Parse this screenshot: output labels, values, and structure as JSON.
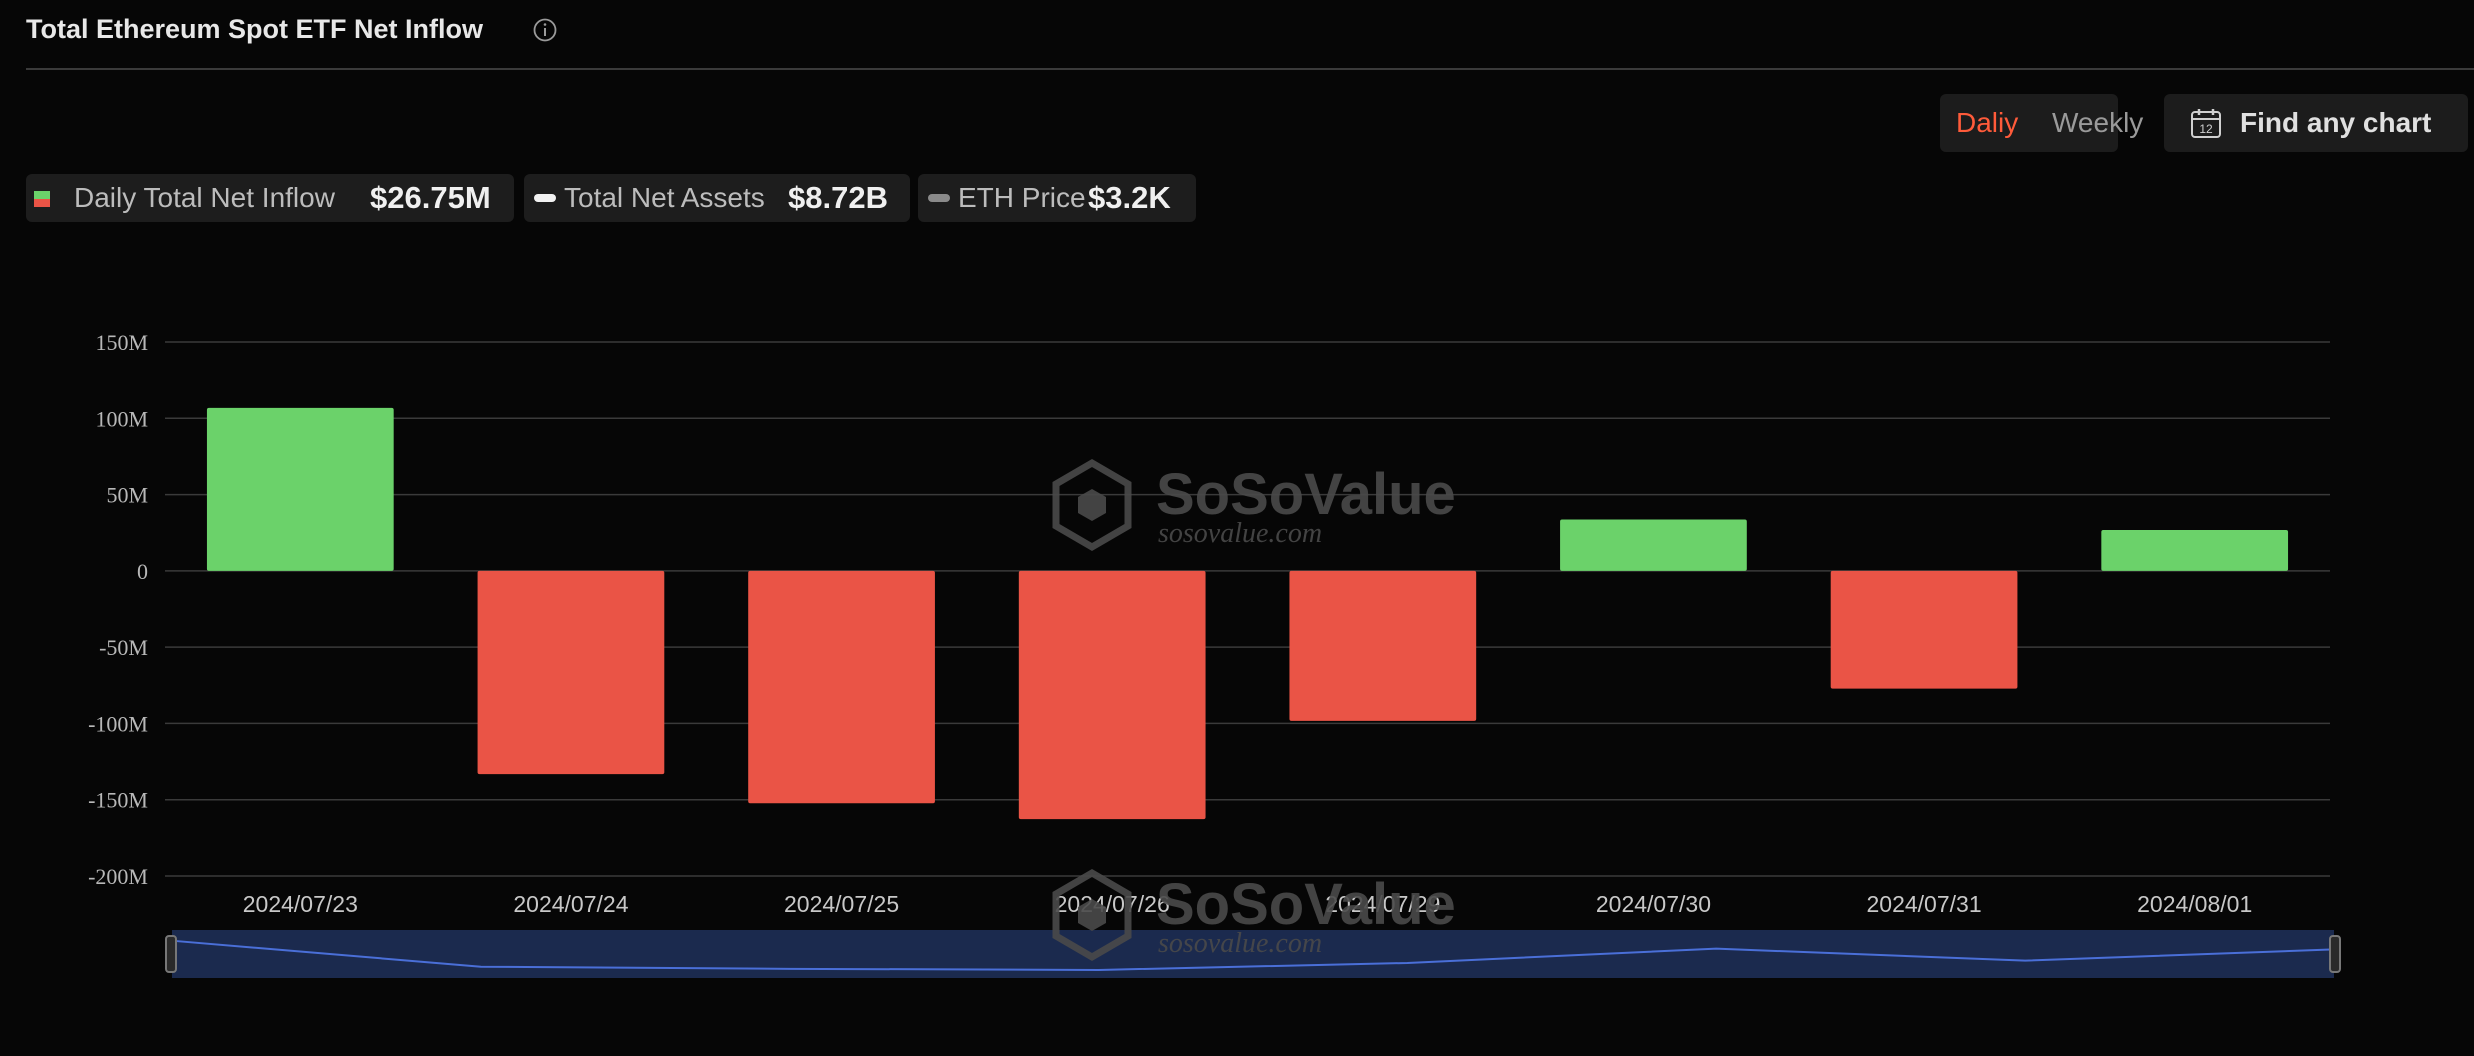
{
  "header": {
    "title": "Total Ethereum Spot ETF Net Inflow",
    "info_icon": "info-circle-icon"
  },
  "controls": {
    "daily_label": "Daliy",
    "weekly_label": "Weekly",
    "find_chart_label": "Find any chart",
    "calendar_icon": "calendar-icon",
    "calendar_day": "12"
  },
  "legend": {
    "inflow": {
      "name": "Daily Total Net Inflow",
      "value": "$26.75M"
    },
    "assets": {
      "name": "Total Net Assets",
      "value": "$8.72B"
    },
    "price": {
      "name": "ETH Price",
      "value": "$3.2K"
    }
  },
  "watermark": {
    "brand": "SoSoValue",
    "url": "sosovalue.com"
  },
  "colors": {
    "positive": "#6bd26a",
    "negative": "#ea5446",
    "accent": "#ff5b3a",
    "navigator_fill": "#1b2a4e",
    "navigator_line": "#4a6fd8"
  },
  "chart_data": {
    "type": "bar",
    "categories": [
      "2024/07/23",
      "2024/07/24",
      "2024/07/25",
      "2024/07/26",
      "2024/07/29",
      "2024/07/30",
      "2024/07/31",
      "2024/08/01"
    ],
    "series": [
      {
        "name": "Daily Total Net Inflow",
        "values": [
          106.8,
          -133.2,
          -152.3,
          -162.7,
          -98.3,
          33.7,
          -77.2,
          26.75
        ]
      }
    ],
    "yticks": [
      150,
      100,
      50,
      0,
      -50,
      -100,
      -150,
      -200
    ],
    "ytick_labels": [
      "150M",
      "100M",
      "50M",
      "0",
      "-50M",
      "-100M",
      "-150M",
      "-200M"
    ],
    "ylim": [
      -200,
      150
    ],
    "grid": true,
    "legend_position": "top-left"
  }
}
